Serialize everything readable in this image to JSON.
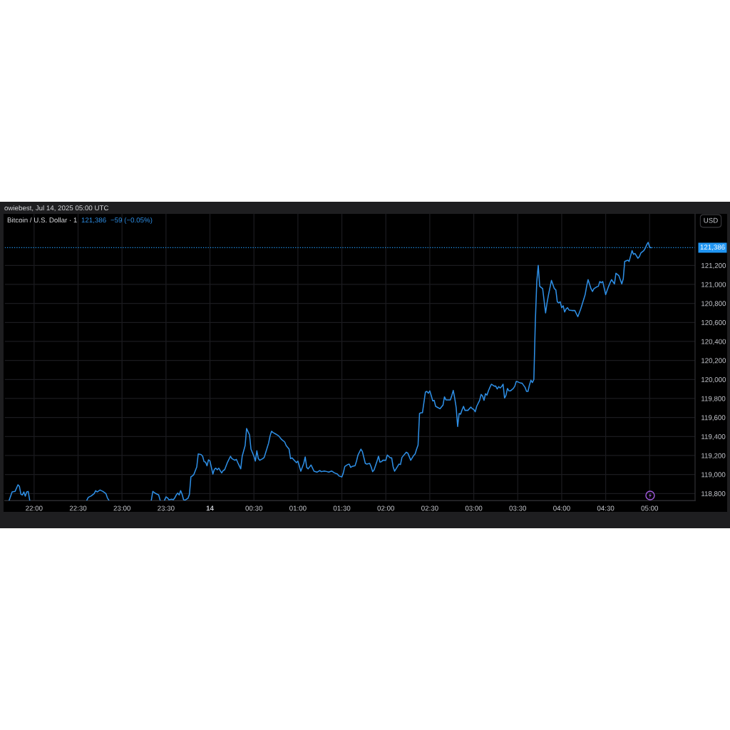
{
  "chart_data": {
    "type": "line",
    "title": "Bitcoin / U.S. Dollar · 1",
    "ylabel": "USD",
    "annotations": [
      "owiebest, Jul 14, 2025 05:00 UTC",
      "121,386",
      "−59 (−0.05%)"
    ],
    "x": [
      "2025-07-13T21:43",
      "2025-07-13T21:45",
      "2025-07-13T21:47",
      "2025-07-13T21:49",
      "2025-07-13T21:50",
      "2025-07-13T21:51",
      "2025-07-13T21:52",
      "2025-07-13T21:53",
      "2025-07-13T21:54",
      "2025-07-13T21:55",
      "2025-07-13T21:56",
      "2025-07-13T21:57",
      "2025-07-13T22:10",
      "2025-07-13T22:36",
      "2025-07-13T22:37",
      "2025-07-13T22:39",
      "2025-07-13T22:41",
      "2025-07-13T22:42",
      "2025-07-13T22:43",
      "2025-07-13T22:45",
      "2025-07-13T22:47",
      "2025-07-13T22:49",
      "2025-07-13T22:50",
      "2025-07-13T22:51",
      "2025-07-13T23:05",
      "2025-07-13T23:20",
      "2025-07-13T23:21",
      "2025-07-13T23:23",
      "2025-07-13T23:25",
      "2025-07-13T23:26",
      "2025-07-13T23:27",
      "2025-07-13T23:29",
      "2025-07-13T23:30",
      "2025-07-13T23:31",
      "2025-07-13T23:32",
      "2025-07-13T23:34",
      "2025-07-13T23:35",
      "2025-07-13T23:36",
      "2025-07-13T23:37",
      "2025-07-13T23:38",
      "2025-07-13T23:39",
      "2025-07-13T23:40",
      "2025-07-13T23:41",
      "2025-07-13T23:42",
      "2025-07-13T23:43",
      "2025-07-13T23:45",
      "2025-07-13T23:46",
      "2025-07-13T23:47",
      "2025-07-13T23:48",
      "2025-07-13T23:49",
      "2025-07-13T23:51",
      "2025-07-13T23:52",
      "2025-07-13T23:54",
      "2025-07-13T23:55",
      "2025-07-13T23:56",
      "2025-07-13T23:57",
      "2025-07-13T23:58",
      "2025-07-13T23:59",
      "2025-07-14T00:00",
      "2025-07-14T00:02",
      "2025-07-14T00:03",
      "2025-07-14T00:04",
      "2025-07-14T00:05",
      "2025-07-14T00:06",
      "2025-07-14T00:07",
      "2025-07-14T00:08",
      "2025-07-14T00:09",
      "2025-07-14T00:10",
      "2025-07-14T00:12",
      "2025-07-14T00:14",
      "2025-07-14T00:15",
      "2025-07-14T00:17",
      "2025-07-14T00:18",
      "2025-07-14T00:19",
      "2025-07-14T00:20",
      "2025-07-14T00:21",
      "2025-07-14T00:22",
      "2025-07-14T00:24",
      "2025-07-14T00:25",
      "2025-07-14T00:26",
      "2025-07-14T00:27",
      "2025-07-14T00:28",
      "2025-07-14T00:30",
      "2025-07-14T00:31",
      "2025-07-14T00:32",
      "2025-07-14T00:33",
      "2025-07-14T00:34",
      "2025-07-14T00:36",
      "2025-07-14T00:37",
      "2025-07-14T00:38",
      "2025-07-14T00:40",
      "2025-07-14T00:41",
      "2025-07-14T00:42",
      "2025-07-14T00:43",
      "2025-07-14T00:45",
      "2025-07-14T00:47",
      "2025-07-14T00:48",
      "2025-07-14T00:49",
      "2025-07-14T00:51",
      "2025-07-14T00:52",
      "2025-07-14T00:54",
      "2025-07-14T00:55",
      "2025-07-14T00:56",
      "2025-07-14T00:58",
      "2025-07-14T00:59",
      "2025-07-14T01:00",
      "2025-07-14T01:02",
      "2025-07-14T01:04",
      "2025-07-14T01:05",
      "2025-07-14T01:06",
      "2025-07-14T01:07",
      "2025-07-14T01:09",
      "2025-07-14T01:10",
      "2025-07-14T01:11",
      "2025-07-14T01:13",
      "2025-07-14T01:15",
      "2025-07-14T01:16",
      "2025-07-14T01:18",
      "2025-07-14T01:20",
      "2025-07-14T01:21",
      "2025-07-14T01:23",
      "2025-07-14T01:25",
      "2025-07-14T01:27",
      "2025-07-14T01:28",
      "2025-07-14T01:30",
      "2025-07-14T01:31",
      "2025-07-14T01:32",
      "2025-07-14T01:34",
      "2025-07-14T01:35",
      "2025-07-14T01:36",
      "2025-07-14T01:37",
      "2025-07-14T01:39",
      "2025-07-14T01:40",
      "2025-07-14T01:41",
      "2025-07-14T01:43",
      "2025-07-14T01:44",
      "2025-07-14T01:45",
      "2025-07-14T01:46",
      "2025-07-14T01:47",
      "2025-07-14T01:49",
      "2025-07-14T01:50",
      "2025-07-14T01:51",
      "2025-07-14T01:52",
      "2025-07-14T01:54",
      "2025-07-14T01:55",
      "2025-07-14T01:56",
      "2025-07-14T01:57",
      "2025-07-14T01:58",
      "2025-07-14T02:00",
      "2025-07-14T02:01",
      "2025-07-14T02:03",
      "2025-07-14T02:04",
      "2025-07-14T02:05",
      "2025-07-14T02:06",
      "2025-07-14T02:07",
      "2025-07-14T02:09",
      "2025-07-14T02:10",
      "2025-07-14T02:11",
      "2025-07-14T02:14",
      "2025-07-14T02:15",
      "2025-07-14T02:17",
      "2025-07-14T02:19",
      "2025-07-14T02:20",
      "2025-07-14T02:21",
      "2025-07-14T02:22",
      "2025-07-14T02:23",
      "2025-07-14T02:24",
      "2025-07-14T02:25",
      "2025-07-14T02:27",
      "2025-07-14T02:28",
      "2025-07-14T02:29",
      "2025-07-14T02:30",
      "2025-07-14T02:31",
      "2025-07-14T02:32",
      "2025-07-14T02:33",
      "2025-07-14T02:34",
      "2025-07-14T02:36",
      "2025-07-14T02:37",
      "2025-07-14T02:39",
      "2025-07-14T02:40",
      "2025-07-14T02:41",
      "2025-07-14T02:43",
      "2025-07-14T02:44",
      "2025-07-14T02:45",
      "2025-07-14T02:46",
      "2025-07-14T02:47",
      "2025-07-14T02:48",
      "2025-07-14T02:49",
      "2025-07-14T02:50",
      "2025-07-14T02:51",
      "2025-07-14T02:52",
      "2025-07-14T02:53",
      "2025-07-14T02:54",
      "2025-07-14T02:56",
      "2025-07-14T02:58",
      "2025-07-14T02:59",
      "2025-07-14T03:00",
      "2025-07-14T03:01",
      "2025-07-14T03:02",
      "2025-07-14T03:04",
      "2025-07-14T03:05",
      "2025-07-14T03:06",
      "2025-07-14T03:07",
      "2025-07-14T03:08",
      "2025-07-14T03:09",
      "2025-07-14T03:10",
      "2025-07-14T03:11",
      "2025-07-14T03:12",
      "2025-07-14T03:14",
      "2025-07-14T03:15",
      "2025-07-14T03:16",
      "2025-07-14T03:17",
      "2025-07-14T03:18",
      "2025-07-14T03:19",
      "2025-07-14T03:20",
      "2025-07-14T03:21",
      "2025-07-14T03:22",
      "2025-07-14T03:23",
      "2025-07-14T03:24",
      "2025-07-14T03:25",
      "2025-07-14T03:27",
      "2025-07-14T03:28",
      "2025-07-14T03:29",
      "2025-07-14T03:30",
      "2025-07-14T03:32",
      "2025-07-14T03:33",
      "2025-07-14T03:35",
      "2025-07-14T03:36",
      "2025-07-14T03:37",
      "2025-07-14T03:38",
      "2025-07-14T03:39",
      "2025-07-14T03:40",
      "2025-07-14T03:41",
      "2025-07-14T03:42",
      "2025-07-14T03:43",
      "2025-07-14T03:44",
      "2025-07-14T03:45",
      "2025-07-14T03:47",
      "2025-07-14T03:48",
      "2025-07-14T03:49",
      "2025-07-14T03:50",
      "2025-07-14T03:51",
      "2025-07-14T03:53",
      "2025-07-14T03:55",
      "2025-07-14T03:56",
      "2025-07-14T03:57",
      "2025-07-14T03:58",
      "2025-07-14T03:59",
      "2025-07-14T04:00",
      "2025-07-14T04:01",
      "2025-07-14T04:02",
      "2025-07-14T04:03",
      "2025-07-14T04:04",
      "2025-07-14T04:05",
      "2025-07-14T04:07",
      "2025-07-14T04:09",
      "2025-07-14T04:10",
      "2025-07-14T04:11",
      "2025-07-14T04:13",
      "2025-07-14T04:15",
      "2025-07-14T04:16",
      "2025-07-14T04:17",
      "2025-07-14T04:18",
      "2025-07-14T04:20",
      "2025-07-14T04:21",
      "2025-07-14T04:22",
      "2025-07-14T04:24",
      "2025-07-14T04:25",
      "2025-07-14T04:26",
      "2025-07-14T04:27",
      "2025-07-14T04:28",
      "2025-07-14T04:30",
      "2025-07-14T04:32",
      "2025-07-14T04:33",
      "2025-07-14T04:34",
      "2025-07-14T04:36",
      "2025-07-14T04:37",
      "2025-07-14T04:39",
      "2025-07-14T04:41",
      "2025-07-14T04:42",
      "2025-07-14T04:43",
      "2025-07-14T04:45",
      "2025-07-14T04:46",
      "2025-07-14T04:48",
      "2025-07-14T04:49",
      "2025-07-14T04:50",
      "2025-07-14T04:51",
      "2025-07-14T04:52",
      "2025-07-14T04:53",
      "2025-07-14T04:54",
      "2025-07-14T04:56",
      "2025-07-14T04:57",
      "2025-07-14T04:58",
      "2025-07-14T04:59",
      "2025-07-14T05:00",
      "2025-07-14T05:01"
    ],
    "series": [
      {
        "color": "#2e8fe6",
        "values": [
          118730,
          118817,
          118822,
          118892,
          118875,
          118792,
          118785,
          118817,
          118772,
          118817,
          118822,
          118730,
          null,
          118730,
          118760,
          118775,
          118800,
          118830,
          118817,
          118837,
          118822,
          118800,
          118755,
          118730,
          null,
          118730,
          118822,
          118800,
          118785,
          118730,
          null,
          118730,
          118765,
          118755,
          118735,
          118740,
          118735,
          118755,
          118785,
          118805,
          118785,
          118830,
          118792,
          118735,
          118730,
          118750,
          118792,
          118975,
          118985,
          119000,
          119080,
          119217,
          119210,
          119192,
          119135,
          119130,
          119092,
          119155,
          119142,
          119005,
          119055,
          119067,
          119050,
          119067,
          119042,
          119017,
          119042,
          119050,
          119130,
          119192,
          119167,
          119150,
          119160,
          119125,
          119092,
          119060,
          119192,
          119305,
          119485,
          119450,
          119417,
          119267,
          119192,
          119142,
          119250,
          119167,
          119150,
          119167,
          119180,
          119230,
          119330,
          119405,
          119455,
          119442,
          119425,
          119405,
          119385,
          119367,
          119342,
          119305,
          119267,
          119167,
          119175,
          119142,
          119125,
          119142,
          119035,
          119117,
          119185,
          119075,
          119060,
          119100,
          119067,
          119035,
          119025,
          119042,
          119030,
          119037,
          119030,
          119025,
          119037,
          119017,
          119005,
          118985,
          118975,
          119017,
          119085,
          119105,
          119110,
          119075,
          119085,
          119092,
          119142,
          119205,
          119267,
          119242,
          119180,
          119117,
          119110,
          119117,
          119080,
          119030,
          119050,
          119142,
          119192,
          119130,
          119135,
          119150,
          119150,
          119205,
          119175,
          119175,
          119080,
          119035,
          119060,
          119110,
          119105,
          119180,
          119235,
          119225,
          119150,
          119200,
          119217,
          119267,
          119310,
          119642,
          119650,
          119650,
          119867,
          119875,
          119855,
          119880,
          119830,
          119775,
          119780,
          119717,
          119700,
          119692,
          119730,
          119817,
          119785,
          119785,
          119785,
          119830,
          119885,
          119805,
          119705,
          119505,
          119642,
          119635,
          119680,
          119717,
          119675,
          119675,
          119710,
          119692,
          119685,
          119660,
          119717,
          119780,
          119842,
          119825,
          119780,
          119850,
          119835,
          119880,
          119917,
          119950,
          119930,
          119930,
          119900,
          119925,
          119910,
          119925,
          119950,
          119805,
          119835,
          119905,
          119880,
          119880,
          119905,
          119930,
          119980,
          119975,
          119962,
          119960,
          119917,
          119875,
          119875,
          119942,
          119992,
          119967,
          120000,
          120605,
          121030,
          121200,
          120980,
          120955,
          120830,
          120700,
          120805,
          120892,
          121042,
          120955,
          120942,
          120817,
          120805,
          120817,
          120755,
          120775,
          120710,
          120742,
          120755,
          120730,
          120725,
          120725,
          120692,
          120660,
          120742,
          120842,
          120892,
          120980,
          121050,
          120955,
          120925,
          120955,
          120975,
          120980,
          121030,
          121017,
          121030,
          120892,
          120980,
          121017,
          121050,
          121005,
          121117,
          121092,
          121005,
          121060,
          121242,
          121255,
          121242,
          121355,
          121317,
          121325,
          121300,
          121275,
          121292,
          121330,
          121355,
          121380,
          121417,
          121442,
          121392,
          121386
        ]
      }
    ],
    "line_style": "solid",
    "xlim": [
      "2025-07-13T21:40",
      "2025-07-14T05:31"
    ],
    "xticks": [
      {
        "value": "2025-07-13T22:00",
        "label": "22:00"
      },
      {
        "value": "2025-07-13T22:30",
        "label": "22:30"
      },
      {
        "value": "2025-07-13T23:00",
        "label": "23:00"
      },
      {
        "value": "2025-07-13T23:30",
        "label": "23:30"
      },
      {
        "value": "2025-07-14T00:00",
        "label": "14"
      },
      {
        "value": "2025-07-14T00:30",
        "label": "00:30"
      },
      {
        "value": "2025-07-14T01:00",
        "label": "01:00"
      },
      {
        "value": "2025-07-14T01:30",
        "label": "01:30"
      },
      {
        "value": "2025-07-14T02:00",
        "label": "02:00"
      },
      {
        "value": "2025-07-14T02:30",
        "label": "02:30"
      },
      {
        "value": "2025-07-14T03:00",
        "label": "03:00"
      },
      {
        "value": "2025-07-14T03:30",
        "label": "03:30"
      },
      {
        "value": "2025-07-14T04:00",
        "label": "04:00"
      },
      {
        "value": "2025-07-14T04:30",
        "label": "04:30"
      },
      {
        "value": "2025-07-14T05:00",
        "label": "05:00"
      }
    ],
    "ylim": [
      118725,
      121742
    ],
    "yticks": [
      {
        "value": 118800,
        "label": "118,800"
      },
      {
        "value": 119000,
        "label": "119,000"
      },
      {
        "value": 119200,
        "label": "119,200"
      },
      {
        "value": 119400,
        "label": "119,400"
      },
      {
        "value": 119600,
        "label": "119,600"
      },
      {
        "value": 119800,
        "label": "119,800"
      },
      {
        "value": 120000,
        "label": "120,000"
      },
      {
        "value": 120200,
        "label": "120,200"
      },
      {
        "value": 120400,
        "label": "120,400"
      },
      {
        "value": 120600,
        "label": "120,600"
      },
      {
        "value": 120800,
        "label": "120,800"
      },
      {
        "value": 121000,
        "label": "121,000"
      },
      {
        "value": 121200,
        "label": "121,200"
      }
    ],
    "ref_lines": [
      {
        "axis": "y",
        "value": 121386,
        "label": "121,386",
        "color": "#2196f3",
        "line_style": "dotted"
      }
    ],
    "grid": true
  }
}
